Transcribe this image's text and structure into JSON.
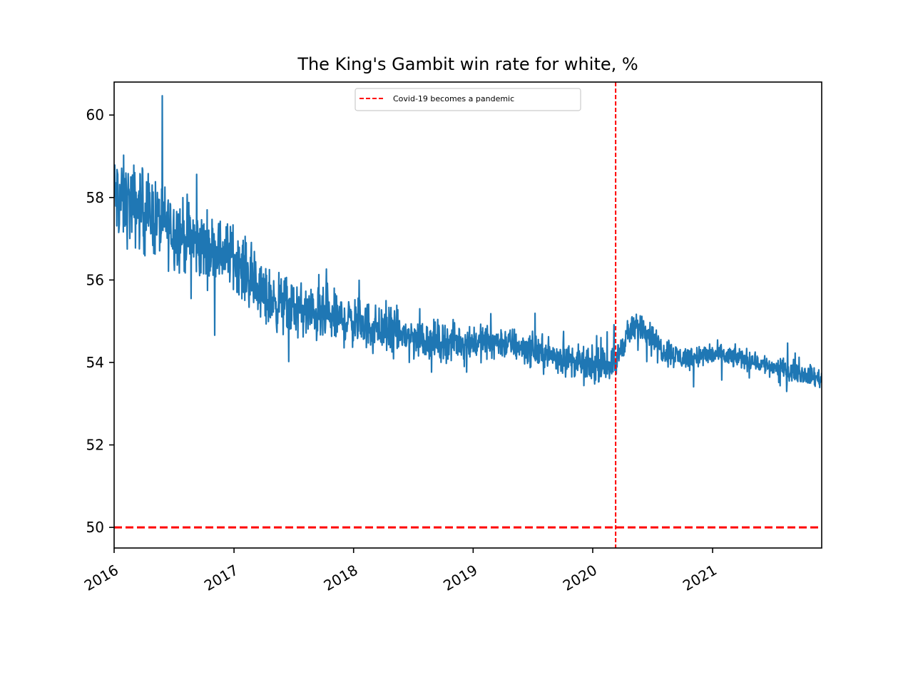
{
  "chart_data": {
    "type": "line",
    "title": "The King's Gambit win rate for white, %",
    "xlabel": "",
    "ylabel": "",
    "x_axis": {
      "type": "date",
      "range": [
        "2016-01-01",
        "2021-11-30"
      ],
      "ticks": [
        "2016",
        "2017",
        "2018",
        "2019",
        "2020",
        "2021"
      ]
    },
    "y_axis": {
      "range": [
        49.5,
        60.8
      ],
      "ticks": [
        50,
        52,
        54,
        56,
        58,
        60
      ]
    },
    "grid": false,
    "series": [
      {
        "color": "#1f77b4",
        "noise_amplitude_trend": [
          {
            "date": "2016-01-01",
            "amp": 1.4
          },
          {
            "date": "2017-01-01",
            "amp": 1.0
          },
          {
            "date": "2018-01-01",
            "amp": 0.8
          },
          {
            "date": "2019-01-01",
            "amp": 0.55
          },
          {
            "date": "2020-01-01",
            "amp": 0.5
          },
          {
            "date": "2021-01-01",
            "amp": 0.35
          },
          {
            "date": "2021-11-30",
            "amp": 0.3
          }
        ],
        "trend": [
          {
            "date": "2016-01-01",
            "y": 58.0
          },
          {
            "date": "2016-04-01",
            "y": 57.7
          },
          {
            "date": "2016-07-01",
            "y": 57.2
          },
          {
            "date": "2016-10-01",
            "y": 56.8
          },
          {
            "date": "2017-01-01",
            "y": 56.6
          },
          {
            "date": "2017-04-01",
            "y": 55.6
          },
          {
            "date": "2017-07-01",
            "y": 55.3
          },
          {
            "date": "2017-10-01",
            "y": 55.1
          },
          {
            "date": "2018-01-01",
            "y": 55.0
          },
          {
            "date": "2018-04-01",
            "y": 54.8
          },
          {
            "date": "2018-07-01",
            "y": 54.6
          },
          {
            "date": "2018-10-01",
            "y": 54.5
          },
          {
            "date": "2019-01-01",
            "y": 54.5
          },
          {
            "date": "2019-04-01",
            "y": 54.5
          },
          {
            "date": "2019-07-01",
            "y": 54.3
          },
          {
            "date": "2019-10-01",
            "y": 54.1
          },
          {
            "date": "2020-01-01",
            "y": 53.9
          },
          {
            "date": "2020-03-11",
            "y": 54.0
          },
          {
            "date": "2020-04-15",
            "y": 54.7
          },
          {
            "date": "2020-06-01",
            "y": 54.9
          },
          {
            "date": "2020-08-01",
            "y": 54.3
          },
          {
            "date": "2020-10-01",
            "y": 54.1
          },
          {
            "date": "2021-01-01",
            "y": 54.2
          },
          {
            "date": "2021-04-01",
            "y": 54.1
          },
          {
            "date": "2021-07-01",
            "y": 53.9
          },
          {
            "date": "2021-09-01",
            "y": 53.8
          },
          {
            "date": "2021-11-30",
            "y": 53.6
          }
        ]
      }
    ],
    "reference_lines": [
      {
        "orientation": "horizontal",
        "value": 50,
        "color": "#ff0000",
        "style": "dashed"
      },
      {
        "orientation": "vertical",
        "value": "2020-03-11",
        "color": "#ff0000",
        "style": "dashed",
        "label": "Covid-19 becomes a pandemic"
      }
    ],
    "legend": {
      "placement": "top-center",
      "entries": [
        {
          "label": "Covid-19 becomes a pandemic",
          "color": "#ff0000",
          "style": "dashed"
        }
      ]
    }
  }
}
